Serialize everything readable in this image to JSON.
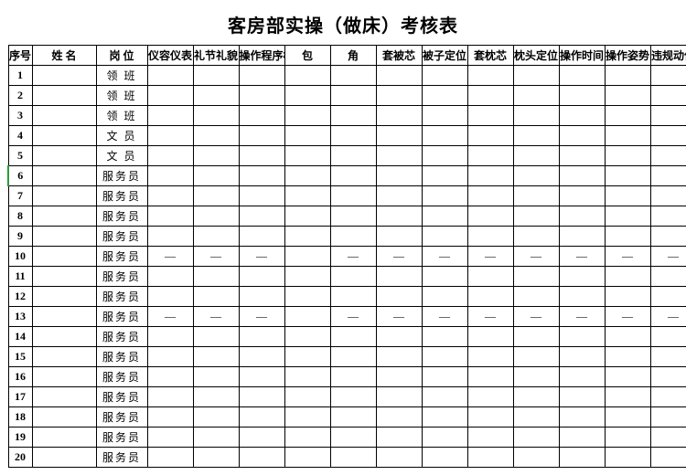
{
  "title": "客房部实操（做床）考核表",
  "columns": [
    "序号",
    "姓  名",
    "岗  位",
    "仪容仪表",
    "礼节礼貌",
    "操作程序标准",
    "包",
    "角",
    "套被芯",
    "被子定位",
    "套枕芯",
    "枕头定位",
    "操作时间",
    "操作姿势",
    "违规动作"
  ],
  "column_classes": [
    "col-seq",
    "col-name",
    "col-pos",
    "col-c",
    "col-c",
    "col-c",
    "col-c",
    "col-c",
    "col-c",
    "col-c",
    "col-c",
    "col-c",
    "col-c",
    "col-c",
    "col-c"
  ],
  "positions": [
    "领  班",
    "领  班",
    "领  班",
    "文  员",
    "文  员",
    "服务员",
    "服务员",
    "服务员",
    "服务员",
    "服务员",
    "服务员",
    "服务员",
    "服务员",
    "服务员",
    "服务员",
    "服务员",
    "服务员",
    "服务员",
    "服务员",
    "服务员"
  ],
  "cells": {
    "10": [
      "—",
      "—",
      "—",
      "",
      "—",
      "—",
      "—",
      "—",
      "—",
      "—",
      "—",
      "—"
    ],
    "13": [
      "—",
      "—",
      "—",
      "",
      "—",
      "—",
      "—",
      "—",
      "—",
      "—",
      "—",
      "—"
    ]
  },
  "row_count": 20,
  "highlight_row": 6,
  "colors": {
    "border": "#000000",
    "highlight": "#2e9b3a",
    "background": "#ffffff"
  }
}
